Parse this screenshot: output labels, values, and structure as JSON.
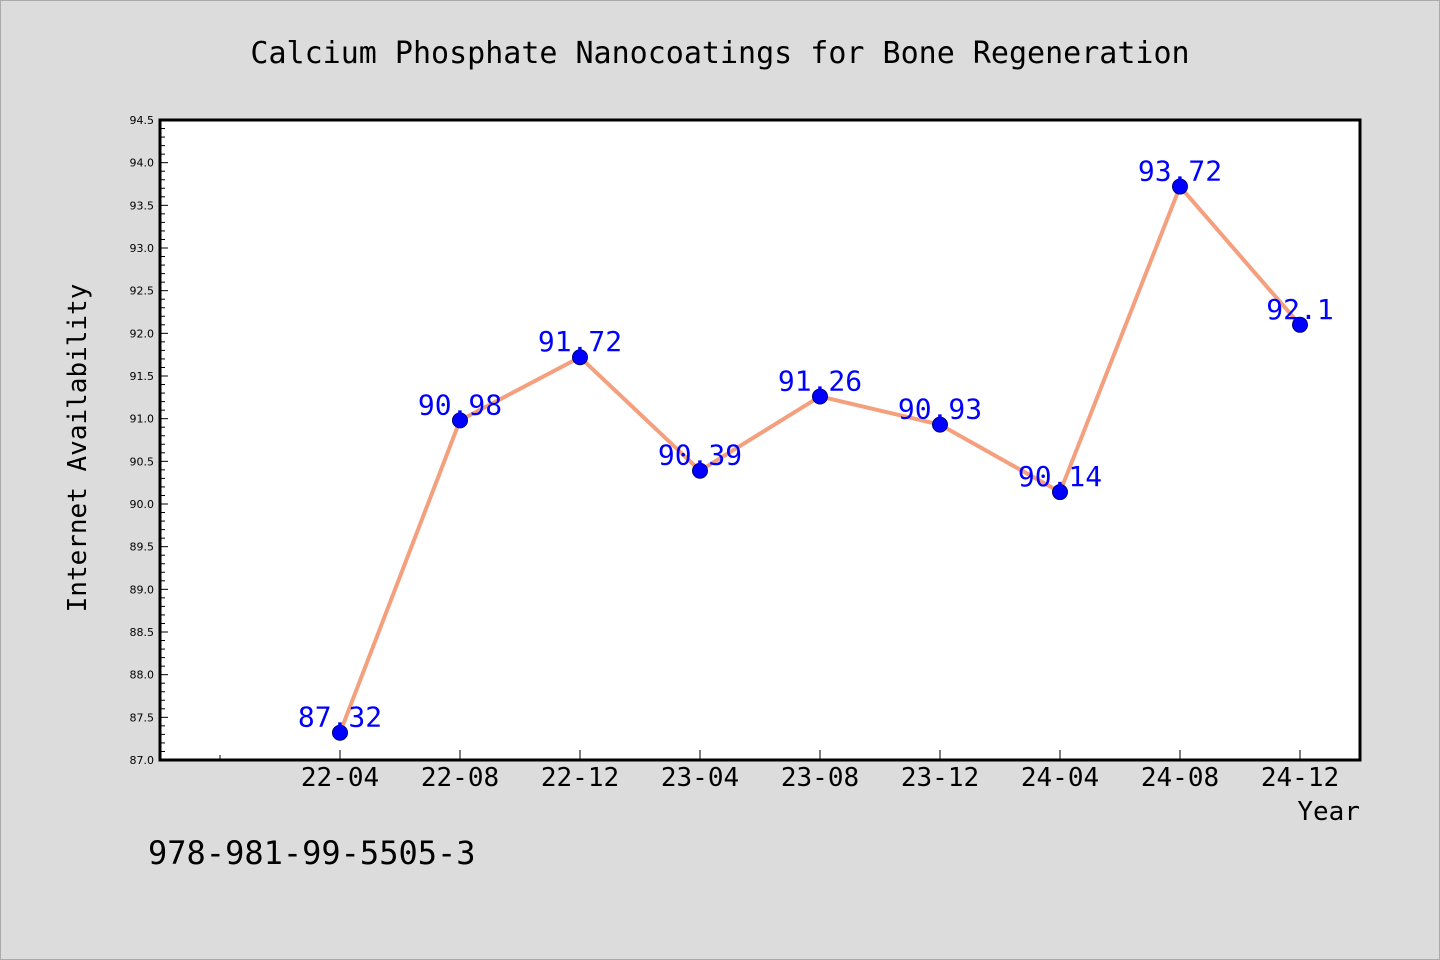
{
  "chart_data": {
    "type": "line",
    "title": "Calcium Phosphate Nanocoatings for Bone Regeneration",
    "xlabel": "Year",
    "ylabel": "Internet Availability",
    "categories": [
      "22-04",
      "22-08",
      "22-12",
      "23-04",
      "23-08",
      "23-12",
      "24-04",
      "24-08",
      "24-12"
    ],
    "values": [
      87.32,
      90.98,
      91.72,
      90.39,
      91.26,
      90.93,
      90.14,
      93.72,
      92.1
    ],
    "data_labels": [
      "87.32",
      "90.98",
      "91.72",
      "90.39",
      "91.26",
      "90.93",
      "90.14",
      "93.72",
      "92.1"
    ],
    "ylim": [
      87.0,
      94.5
    ],
    "yticks": [
      "87.0",
      "87.5",
      "88.0",
      "88.5",
      "89.0",
      "89.5",
      "90.0",
      "90.5",
      "91.0",
      "91.5",
      "92.0",
      "92.5",
      "93.0",
      "93.5",
      "94.0",
      "94.5"
    ],
    "grid": false,
    "legend": "none",
    "colors": {
      "line": "#f4a07e",
      "marker": "#0000ff",
      "label": "#0000ff",
      "plot_bg": "#ffffff",
      "page_bg": "#dcdcdc"
    }
  },
  "footnote": "978-981-99-5505-3"
}
